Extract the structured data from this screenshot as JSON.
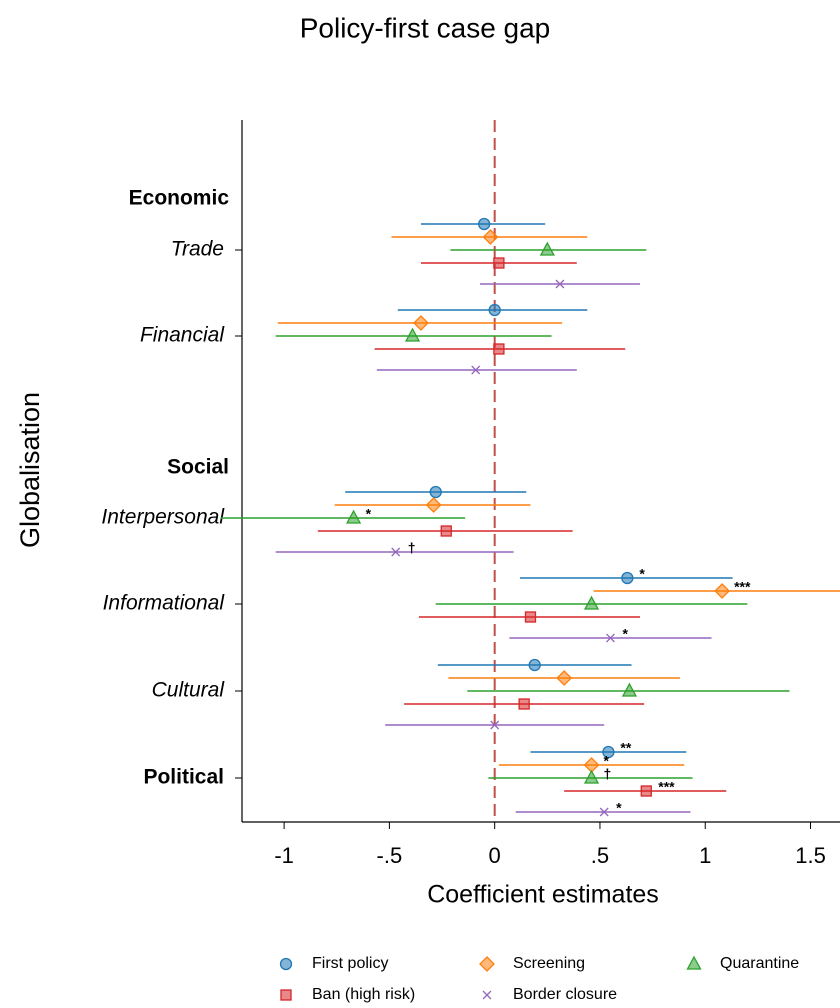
{
  "chart_data": {
    "type": "coefplot",
    "title": "Policy-first case gap",
    "x_label": "Coefficient estimates",
    "y_label": "Globalisation",
    "headings": [
      "Economic",
      "Social"
    ],
    "categories": [
      "Trade",
      "Financial",
      "Interpersonal",
      "Informational",
      "Cultural",
      "Political"
    ],
    "xlim": [
      -1.2,
      1.64
    ],
    "xticks": [
      -1,
      {
        "value": -0.5,
        "label": "-.5"
      },
      0,
      {
        "value": 0.5,
        "label": ".5"
      },
      1,
      1.5
    ],
    "ref_line": 0,
    "ref_color": "#c0504d",
    "series": [
      {
        "name": "First policy",
        "color": "#1f77b4",
        "marker": "circle",
        "label_color": "#1f4e79",
        "values": [
          -0.05,
          0.0,
          -0.28,
          0.63,
          0.19,
          0.54
        ],
        "ci_low": [
          -0.35,
          -0.46,
          -0.71,
          0.12,
          -0.27,
          0.17
        ],
        "ci_high": [
          0.24,
          0.44,
          0.15,
          1.13,
          0.65,
          0.91
        ],
        "labels": [
          null,
          null,
          null,
          "*",
          null,
          "**"
        ]
      },
      {
        "name": "Screening",
        "color": "#ff7f0e",
        "marker": "diamond",
        "label_color": "#c00000",
        "values": [
          -0.02,
          -0.35,
          -0.29,
          1.08,
          0.33,
          0.46
        ],
        "ci_low": [
          -0.49,
          -1.03,
          -0.76,
          0.47,
          -0.22,
          0.02
        ],
        "ci_high": [
          0.44,
          0.32,
          0.17,
          1.7,
          0.88,
          0.9
        ],
        "labels": [
          null,
          null,
          null,
          "***",
          null,
          "*"
        ]
      },
      {
        "name": "Quarantine",
        "color": "#2ca02c",
        "marker": "triangle",
        "label_color": "#1b6b1b",
        "values": [
          0.25,
          -0.39,
          -0.67,
          0.46,
          0.64,
          0.46
        ],
        "ci_low": [
          -0.21,
          -1.04,
          -1.3,
          -0.28,
          -0.13,
          -0.03
        ],
        "ci_high": [
          0.72,
          0.27,
          -0.14,
          1.2,
          1.4,
          0.94
        ],
        "labels": [
          null,
          null,
          "*",
          null,
          null,
          "†"
        ]
      },
      {
        "name": "Ban (high risk)",
        "color": "#d62728",
        "marker": "square",
        "label_color": "#e8741a",
        "values": [
          0.02,
          0.02,
          -0.23,
          0.17,
          0.14,
          0.72
        ],
        "ci_low": [
          -0.35,
          -0.57,
          -0.84,
          -0.36,
          -0.43,
          0.33
        ],
        "ci_high": [
          0.39,
          0.62,
          0.37,
          0.69,
          0.71,
          1.1
        ],
        "labels": [
          null,
          null,
          null,
          null,
          null,
          "***"
        ]
      },
      {
        "name": "Border closure",
        "color": "#9467bd",
        "marker": "x",
        "label_color": "#145a5a",
        "values": [
          0.31,
          -0.09,
          -0.47,
          0.55,
          0.0,
          0.52
        ],
        "ci_low": [
          -0.07,
          -0.56,
          -1.04,
          0.07,
          -0.52,
          0.1
        ],
        "ci_high": [
          0.69,
          0.39,
          0.09,
          1.03,
          0.52,
          0.93
        ],
        "labels": [
          null,
          null,
          "†",
          "*",
          null,
          "*"
        ]
      }
    ]
  }
}
